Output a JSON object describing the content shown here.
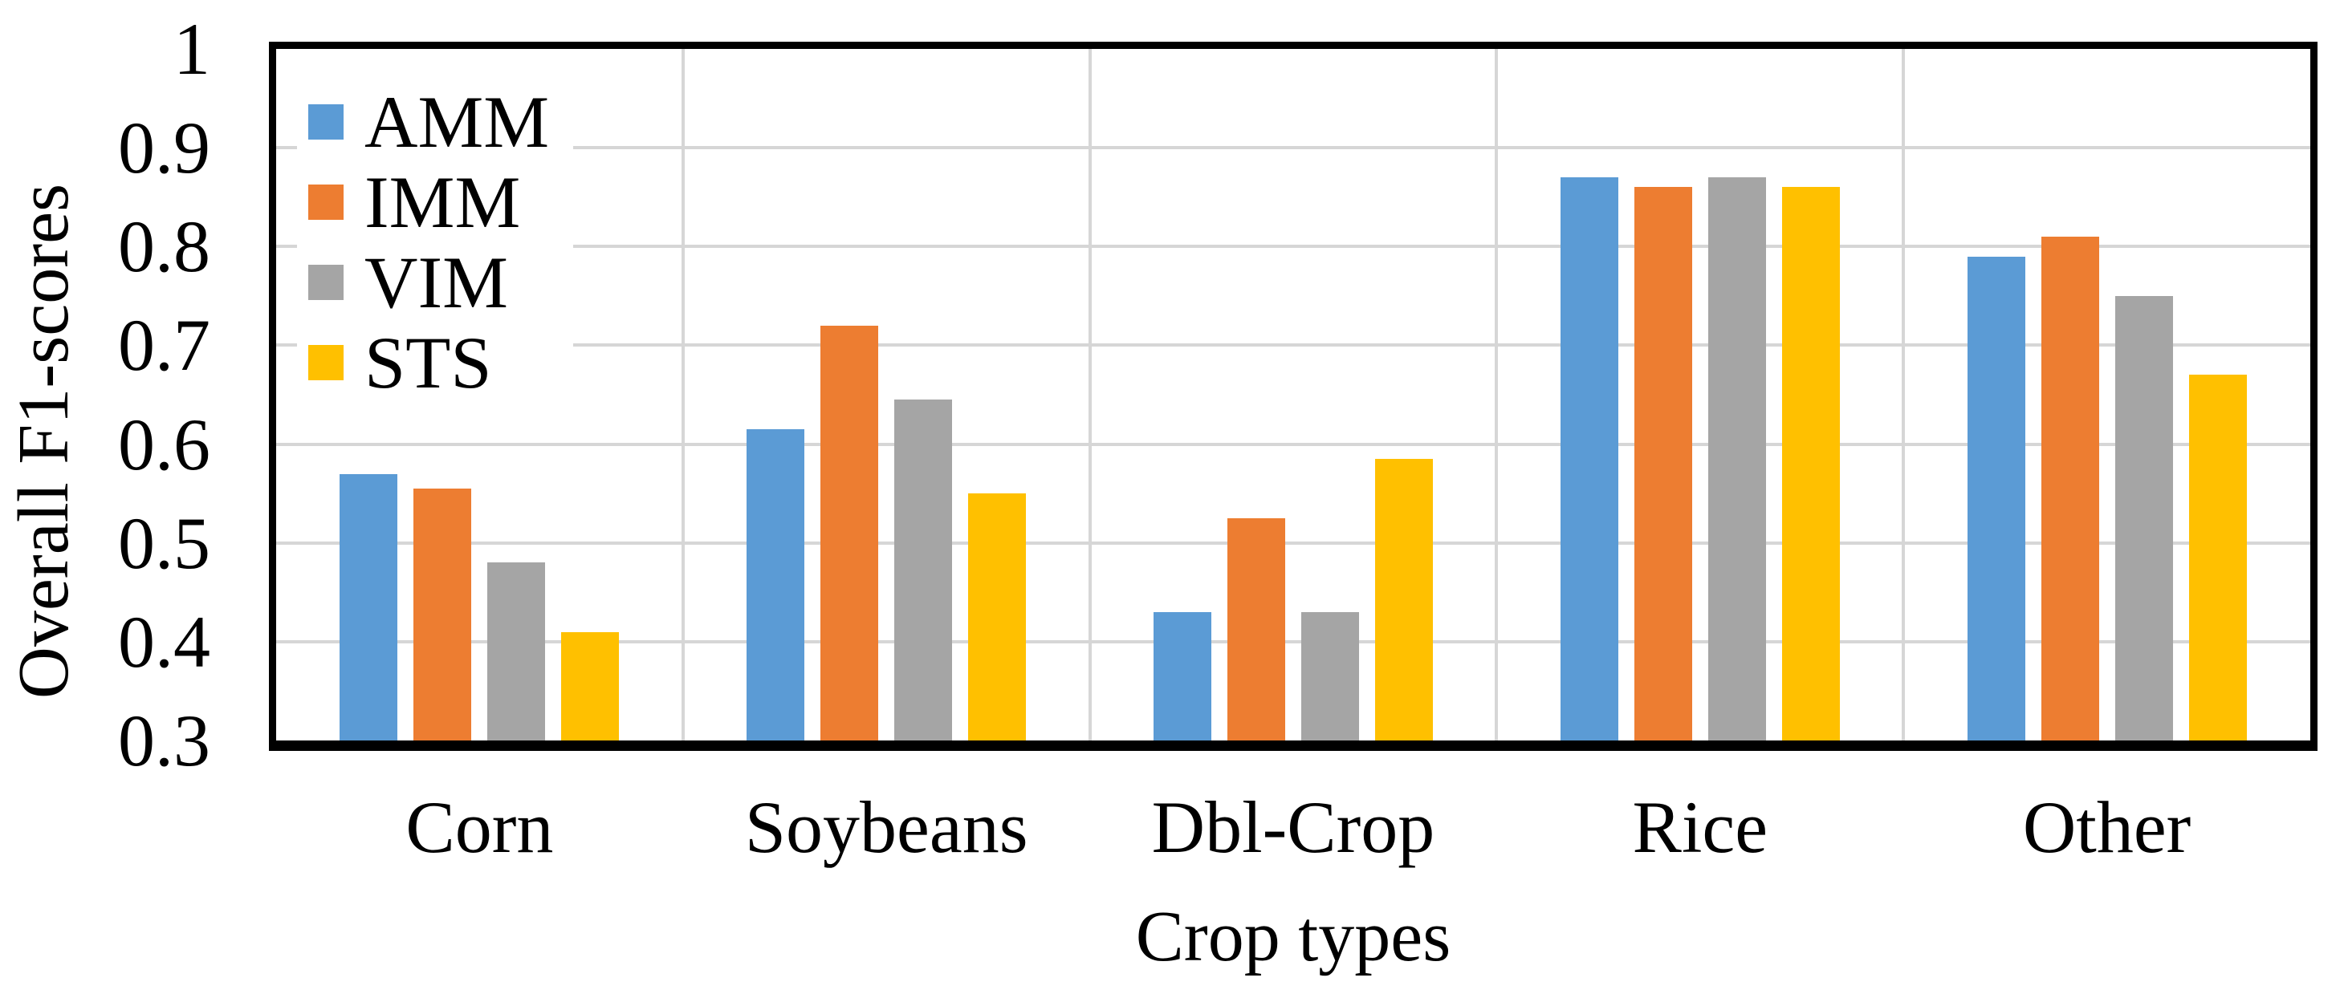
{
  "chart_data": {
    "type": "bar",
    "title": "",
    "categories": [
      "Corn",
      "Soybeans",
      "Dbl-Crop",
      "Rice",
      "Other"
    ],
    "series": [
      {
        "name": "AMM",
        "color": "#5B9BD5",
        "values": [
          0.57,
          0.615,
          0.43,
          0.87,
          0.79
        ]
      },
      {
        "name": "IMM",
        "color": "#ED7D31",
        "values": [
          0.555,
          0.72,
          0.525,
          0.86,
          0.81
        ]
      },
      {
        "name": "VIM",
        "color": "#A5A5A5",
        "values": [
          0.48,
          0.645,
          0.43,
          0.87,
          0.75
        ]
      },
      {
        "name": "STS",
        "color": "#FFC000",
        "values": [
          0.41,
          0.55,
          0.585,
          0.86,
          0.67
        ]
      }
    ],
    "xlabel": "Crop types",
    "ylabel": "Overall F1-scores",
    "ylim": [
      0.3,
      1.0
    ],
    "yticks": [
      1,
      0.9,
      0.8,
      0.7,
      0.6,
      0.5,
      0.4,
      0.3
    ],
    "ytick_labels": [
      "1",
      "0.9",
      "0.8",
      "0.7",
      "0.6",
      "0.5",
      "0.4",
      "0.3"
    ],
    "legend_position": "top-left-inside",
    "grid": true
  },
  "colors": {
    "gridline": "#d6d6d6",
    "axis_border": "#000000",
    "background": "#ffffff",
    "text": "#000000"
  }
}
